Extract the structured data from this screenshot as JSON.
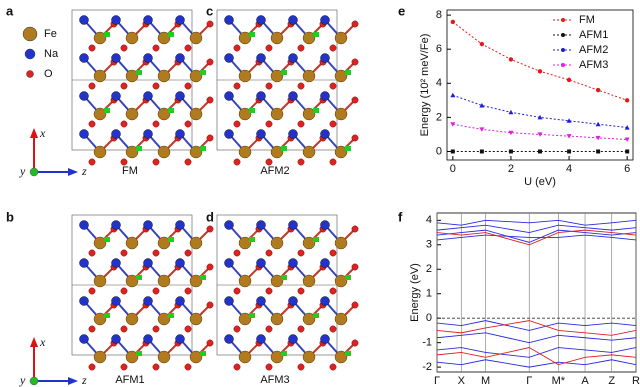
{
  "panel_labels": [
    "a",
    "b",
    "c",
    "d",
    "e",
    "f"
  ],
  "atom_legend": [
    {
      "label": "Fe",
      "color": "#b07a1e"
    },
    {
      "label": "Na",
      "color": "#2233cc"
    },
    {
      "label": "O",
      "color": "#dd2222"
    }
  ],
  "structure_captions": [
    "FM",
    "AFM2",
    "AFM1",
    "AFM3"
  ],
  "axis_triads": [
    {
      "x": "x",
      "y": "y",
      "z": "z"
    },
    {
      "x": "x",
      "y": "y",
      "z": "z"
    }
  ],
  "chart_data": [
    {
      "type": "line",
      "xlabel": "U (eV)",
      "ylabel": "Energy (10² meV/Fe)",
      "x": [
        0,
        1,
        2,
        3,
        4,
        5,
        6
      ],
      "xlim": [
        -0.2,
        6.2
      ],
      "xticks": [
        0,
        2,
        4,
        6
      ],
      "ylim": [
        -0.5,
        8.3
      ],
      "yticks": [
        0,
        2,
        4,
        6,
        8
      ],
      "legend": "upper right",
      "series": [
        {
          "name": "FM",
          "color": "#e31a1c",
          "marker": "circle",
          "values": [
            7.6,
            6.3,
            5.4,
            4.7,
            4.2,
            3.6,
            3.0
          ]
        },
        {
          "name": "AFM1",
          "color": "#111111",
          "marker": "square",
          "values": [
            0,
            0,
            0,
            0,
            0,
            0,
            0
          ]
        },
        {
          "name": "AFM2",
          "color": "#1f1fd0",
          "marker": "triangle-up",
          "values": [
            3.3,
            2.7,
            2.3,
            2.0,
            1.8,
            1.6,
            1.4
          ]
        },
        {
          "name": "AFM3",
          "color": "#e020e0",
          "marker": "triangle-down",
          "values": [
            1.6,
            1.3,
            1.1,
            1.0,
            0.9,
            0.8,
            0.7
          ]
        }
      ]
    },
    {
      "type": "band",
      "ylabel": "Energy (eV)",
      "x": [
        0,
        1,
        2,
        3.8,
        5,
        6.1,
        7.2,
        8.2
      ],
      "xlim": [
        0,
        8.2
      ],
      "xticks": [
        {
          "value": 0,
          "label": "Γ"
        },
        {
          "value": 1,
          "label": "X"
        },
        {
          "value": 2,
          "label": "M"
        },
        {
          "value": 3.8,
          "label": "Γ"
        },
        {
          "value": 5,
          "label": "M*"
        },
        {
          "value": 6.1,
          "label": "A"
        },
        {
          "value": 7.2,
          "label": "Z"
        },
        {
          "value": 8.2,
          "label": "R"
        }
      ],
      "ylim": [
        -2.2,
        4.3
      ],
      "yticks": [
        -2,
        -1,
        0,
        1,
        2,
        3,
        4
      ],
      "reference_line": 0,
      "series": [
        {
          "color": "#2a2ae0",
          "values": [
            3.4,
            3.5,
            3.6,
            3.1,
            3.6,
            3.5,
            3.4,
            3.5
          ]
        },
        {
          "color": "#2a2ae0",
          "values": [
            3.6,
            3.7,
            3.8,
            3.5,
            3.8,
            3.7,
            3.6,
            3.7
          ]
        },
        {
          "color": "#2a2ae0",
          "values": [
            3.9,
            3.8,
            4.0,
            3.9,
            4.0,
            3.8,
            3.9,
            4.0
          ]
        },
        {
          "color": "#2a2ae0",
          "values": [
            3.2,
            3.3,
            3.4,
            3.3,
            3.3,
            3.4,
            3.3,
            3.2
          ]
        },
        {
          "color": "#e02020",
          "values": [
            3.5,
            3.4,
            3.5,
            3.0,
            3.5,
            3.6,
            3.5,
            3.4
          ]
        },
        {
          "color": "#2a2ae0",
          "values": [
            -0.2,
            -0.3,
            -0.1,
            -0.5,
            -0.2,
            -0.3,
            -0.2,
            -0.3
          ]
        },
        {
          "color": "#2a2ae0",
          "values": [
            -0.8,
            -0.7,
            -0.6,
            -1.0,
            -0.7,
            -0.8,
            -0.9,
            -0.8
          ]
        },
        {
          "color": "#2a2ae0",
          "values": [
            -1.3,
            -1.2,
            -1.4,
            -1.6,
            -1.2,
            -1.3,
            -1.4,
            -1.2
          ]
        },
        {
          "color": "#2a2ae0",
          "values": [
            -1.8,
            -1.9,
            -1.7,
            -2.0,
            -1.8,
            -1.9,
            -1.7,
            -1.9
          ]
        },
        {
          "color": "#e02020",
          "values": [
            -0.5,
            -0.6,
            -0.4,
            -0.1,
            -0.5,
            -0.6,
            -0.7,
            -0.5
          ]
        },
        {
          "color": "#e02020",
          "values": [
            -1.5,
            -1.4,
            -1.6,
            -1.2,
            -1.9,
            -1.6,
            -1.5,
            -1.6
          ]
        }
      ]
    }
  ]
}
